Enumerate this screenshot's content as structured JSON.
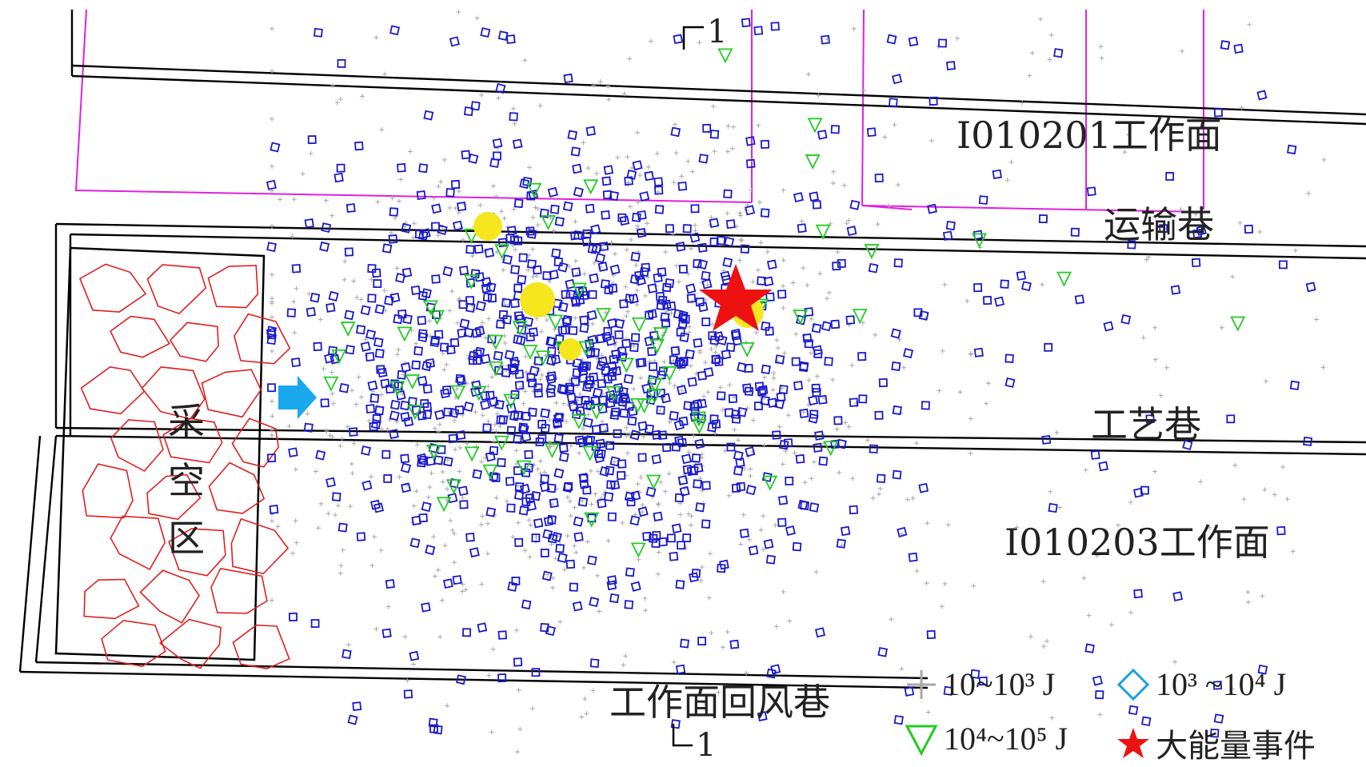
{
  "labels": {
    "face_north": "I010201工作面",
    "haulage": "运输巷",
    "process": "工艺巷",
    "face_south": "I010203工作面",
    "return_air": "工作面回风巷",
    "goaf": [
      "采",
      "空",
      "区"
    ],
    "section_top": "1",
    "section_bottom": "1"
  },
  "legend": {
    "cross": "10~10³ J",
    "diamond": "10³ ~10⁴ J",
    "triangle": "10⁴~10⁵ J",
    "star": "大能量事件"
  },
  "colors": {
    "cross": "#a8a8a8",
    "diamond": "#1a1acc",
    "diamond_legend": "#1aa0e0",
    "triangle": "#22cc22",
    "star": "#ee1111",
    "yellow": "#f5e61e",
    "goaf": "#e02020",
    "face_boundary": "#e020e0",
    "arrow": "#1aa8ee",
    "line": "#000000"
  },
  "icons": [
    "arrow-right-icon",
    "star-icon"
  ]
}
